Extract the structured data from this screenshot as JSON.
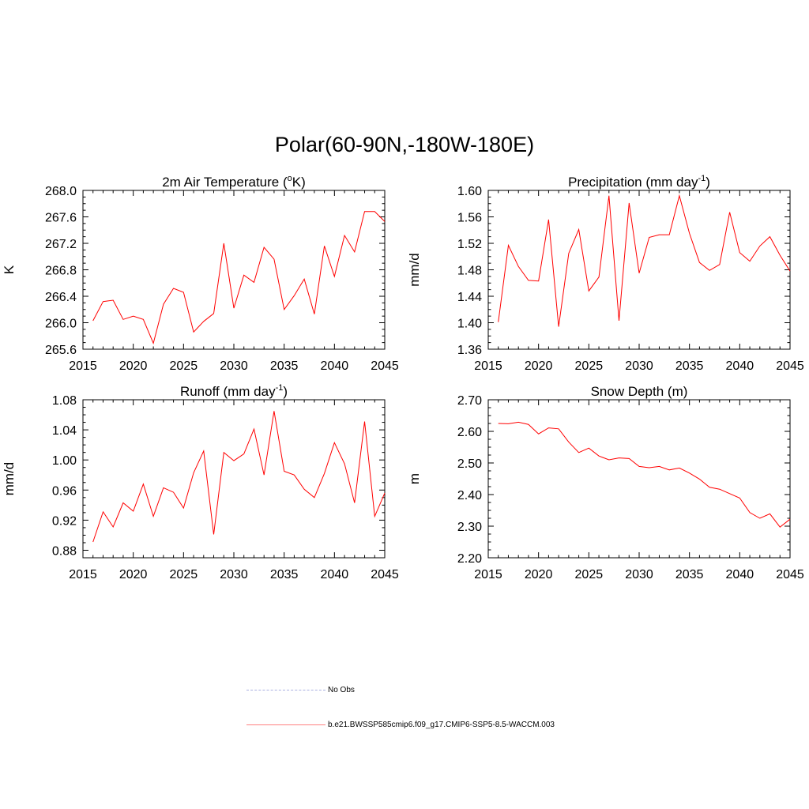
{
  "figure": {
    "title": "Polar(60-90N,-180W-180E)"
  },
  "legend": {
    "entries": [
      {
        "label": "No Obs",
        "color": "#aab0e0",
        "style": "dashed"
      },
      {
        "label": "b.e21.BWSSP585cmip6.f09_g17.CMIP6-SSP5-8.5-WACCM.003",
        "color": "#ff8080",
        "style": "solid"
      }
    ]
  },
  "series_color": "#ff0000",
  "chart_data": [
    {
      "type": "line",
      "title_main": "2m Air Temperature (",
      "title_sup": "o",
      "title_tail": "K)",
      "ylabel": "K",
      "xlabel": "",
      "xlim": [
        2015,
        2045
      ],
      "ylim": [
        265.6,
        268.0
      ],
      "xticks": [
        2015,
        2020,
        2025,
        2030,
        2035,
        2040,
        2045
      ],
      "xtick_labels": [
        "2015",
        "2020",
        "2025",
        "2030",
        "2035",
        "2040",
        "2045"
      ],
      "yticks": [
        265.6,
        266.0,
        266.4,
        266.8,
        267.2,
        267.6,
        268.0
      ],
      "ytick_labels": [
        "265.6",
        "266.0",
        "266.4",
        "266.8",
        "267.2",
        "267.6",
        "268.0"
      ],
      "x": [
        2016,
        2017,
        2018,
        2019,
        2020,
        2021,
        2022,
        2023,
        2024,
        2025,
        2026,
        2027,
        2028,
        2029,
        2030,
        2031,
        2032,
        2033,
        2034,
        2035,
        2036,
        2037,
        2038,
        2039,
        2040,
        2041,
        2042,
        2043,
        2044,
        2045
      ],
      "values": [
        266.03,
        266.32,
        266.34,
        266.05,
        266.1,
        266.05,
        265.69,
        266.28,
        266.52,
        266.46,
        265.86,
        266.02,
        266.14,
        267.2,
        266.22,
        266.72,
        266.61,
        267.14,
        266.96,
        266.2,
        266.41,
        266.66,
        266.13,
        267.16,
        266.7,
        267.32,
        267.07,
        267.68,
        267.68,
        267.53
      ]
    },
    {
      "type": "line",
      "title_main": "Precipitation (mm day",
      "title_sup": "-1",
      "title_tail": ")",
      "ylabel": "mm/d",
      "xlabel": "",
      "xlim": [
        2015,
        2045
      ],
      "ylim": [
        1.36,
        1.6
      ],
      "xticks": [
        2015,
        2020,
        2025,
        2030,
        2035,
        2040,
        2045
      ],
      "xtick_labels": [
        "2015",
        "2020",
        "2025",
        "2030",
        "2035",
        "2040",
        "2045"
      ],
      "yticks": [
        1.36,
        1.4,
        1.44,
        1.48,
        1.52,
        1.56,
        1.6
      ],
      "ytick_labels": [
        "1.36",
        "1.40",
        "1.44",
        "1.48",
        "1.52",
        "1.56",
        "1.60"
      ],
      "x": [
        2016,
        2017,
        2018,
        2019,
        2020,
        2021,
        2022,
        2023,
        2024,
        2025,
        2026,
        2027,
        2028,
        2029,
        2030,
        2031,
        2032,
        2033,
        2034,
        2035,
        2036,
        2037,
        2038,
        2039,
        2040,
        2041,
        2042,
        2043,
        2044,
        2045
      ],
      "values": [
        1.401,
        1.517,
        1.485,
        1.464,
        1.463,
        1.556,
        1.394,
        1.505,
        1.541,
        1.448,
        1.469,
        1.592,
        1.403,
        1.581,
        1.475,
        1.529,
        1.533,
        1.533,
        1.592,
        1.535,
        1.491,
        1.479,
        1.488,
        1.567,
        1.506,
        1.493,
        1.516,
        1.53,
        1.502,
        1.478
      ]
    },
    {
      "type": "line",
      "title_main": "Runoff (mm day",
      "title_sup": "-1",
      "title_tail": ")",
      "ylabel": "mm/d",
      "xlabel": "",
      "xlim": [
        2015,
        2045
      ],
      "ylim": [
        0.87,
        1.08
      ],
      "xticks": [
        2015,
        2020,
        2025,
        2030,
        2035,
        2040,
        2045
      ],
      "xtick_labels": [
        "2015",
        "2020",
        "2025",
        "2030",
        "2035",
        "2040",
        "2045"
      ],
      "yticks": [
        0.88,
        0.92,
        0.96,
        1.0,
        1.04,
        1.08
      ],
      "ytick_labels": [
        "0.88",
        "0.92",
        "0.96",
        "1.00",
        "1.04",
        "1.08"
      ],
      "x": [
        2016,
        2017,
        2018,
        2019,
        2020,
        2021,
        2022,
        2023,
        2024,
        2025,
        2026,
        2027,
        2028,
        2029,
        2030,
        2031,
        2032,
        2033,
        2034,
        2035,
        2036,
        2037,
        2038,
        2039,
        2040,
        2041,
        2042,
        2043,
        2044,
        2045
      ],
      "values": [
        0.891,
        0.931,
        0.911,
        0.943,
        0.932,
        0.968,
        0.925,
        0.963,
        0.957,
        0.936,
        0.983,
        1.012,
        0.901,
        1.01,
        0.999,
        1.008,
        1.041,
        0.98,
        1.065,
        0.985,
        0.98,
        0.961,
        0.95,
        0.982,
        1.023,
        0.995,
        0.943,
        1.051,
        0.925,
        0.956
      ]
    },
    {
      "type": "line",
      "title_main": "Snow Depth (m)",
      "title_sup": "",
      "title_tail": "",
      "ylabel": "m",
      "xlabel": "",
      "xlim": [
        2015,
        2045
      ],
      "ylim": [
        2.2,
        2.7
      ],
      "xticks": [
        2015,
        2020,
        2025,
        2030,
        2035,
        2040,
        2045
      ],
      "xtick_labels": [
        "2015",
        "2020",
        "2025",
        "2030",
        "2035",
        "2040",
        "2045"
      ],
      "yticks": [
        2.2,
        2.3,
        2.4,
        2.5,
        2.6,
        2.7
      ],
      "ytick_labels": [
        "2.20",
        "2.30",
        "2.40",
        "2.50",
        "2.60",
        "2.70"
      ],
      "x": [
        2016,
        2017,
        2018,
        2019,
        2020,
        2021,
        2022,
        2023,
        2024,
        2025,
        2026,
        2027,
        2028,
        2029,
        2030,
        2031,
        2032,
        2033,
        2034,
        2035,
        2036,
        2037,
        2038,
        2039,
        2040,
        2041,
        2042,
        2043,
        2044,
        2045
      ],
      "values": [
        2.625,
        2.624,
        2.629,
        2.622,
        2.592,
        2.611,
        2.608,
        2.566,
        2.533,
        2.547,
        2.522,
        2.51,
        2.516,
        2.514,
        2.489,
        2.485,
        2.489,
        2.478,
        2.484,
        2.468,
        2.449,
        2.423,
        2.417,
        2.403,
        2.389,
        2.343,
        2.325,
        2.339,
        2.297,
        2.322
      ]
    }
  ]
}
